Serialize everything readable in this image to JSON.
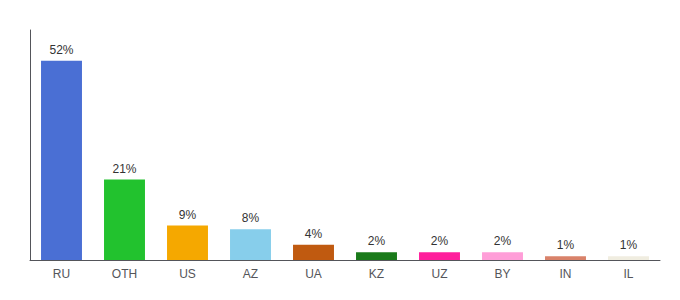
{
  "chart_data": {
    "type": "bar",
    "categories": [
      "RU",
      "OTH",
      "US",
      "AZ",
      "UA",
      "KZ",
      "UZ",
      "BY",
      "IN",
      "IL"
    ],
    "values": [
      52,
      21,
      9,
      8,
      4,
      2,
      2,
      2,
      1,
      1
    ],
    "value_labels": [
      "52%",
      "21%",
      "9%",
      "8%",
      "4%",
      "2%",
      "2%",
      "2%",
      "1%",
      "1%"
    ],
    "data_labels": true,
    "colors": [
      "#4a6fd4",
      "#22c22e",
      "#f5a800",
      "#87ceeb",
      "#c05a10",
      "#1a7a1a",
      "#ff1f9c",
      "#ff9ed8",
      "#d9826a",
      "#f0ede0"
    ],
    "ylim": [
      0,
      60
    ],
    "tick_labels": "x",
    "grid": false
  }
}
